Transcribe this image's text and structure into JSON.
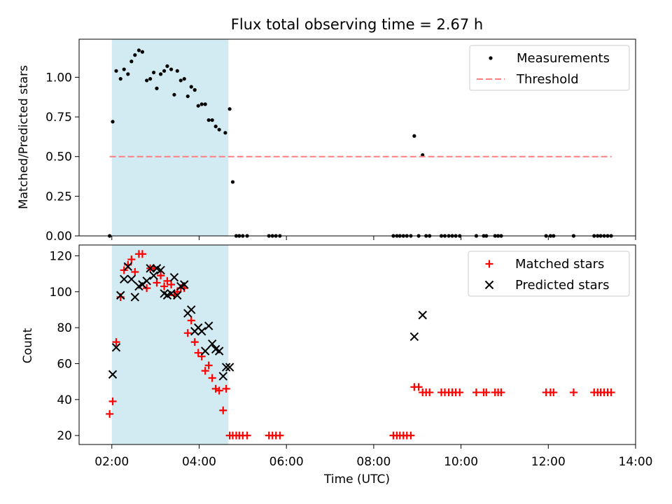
{
  "chart_data": {
    "title": "Flux total observing time = 2.67 h",
    "shared_xlabel": "Time (UTC)",
    "x_unit": "hours UTC",
    "xlim": [
      1.25,
      14.0
    ],
    "x_ticks": [
      {
        "value": 2,
        "label": "02:00"
      },
      {
        "value": 4,
        "label": "04:00"
      },
      {
        "value": 6,
        "label": "06:00"
      },
      {
        "value": 8,
        "label": "08:00"
      },
      {
        "value": 10,
        "label": "10:00"
      },
      {
        "value": 12,
        "label": "12:00"
      },
      {
        "value": 14,
        "label": "14:00"
      }
    ],
    "observing_window": {
      "start": 2.0,
      "end": 4.67,
      "color": "#add8e6"
    },
    "charts": [
      {
        "type": "scatter",
        "ylabel": "Matched/Predicted stars",
        "ylim": [
          0,
          1.24
        ],
        "y_ticks": [
          {
            "value": 0.0,
            "label": "0.00"
          },
          {
            "value": 0.25,
            "label": "0.25"
          },
          {
            "value": 0.5,
            "label": "0.50"
          },
          {
            "value": 0.75,
            "label": "0.75"
          },
          {
            "value": 1.0,
            "label": "1.00"
          }
        ],
        "legend_position": "top-right",
        "series": [
          {
            "name": "Measurements",
            "marker": "dot",
            "color": "#000000",
            "points": [
              [
                1.95,
                0.0
              ],
              [
                2.02,
                0.72
              ],
              [
                2.1,
                1.04
              ],
              [
                2.2,
                0.99
              ],
              [
                2.28,
                1.05
              ],
              [
                2.37,
                1.02
              ],
              [
                2.45,
                1.1
              ],
              [
                2.53,
                1.14
              ],
              [
                2.62,
                1.17
              ],
              [
                2.7,
                1.16
              ],
              [
                2.8,
                0.98
              ],
              [
                2.88,
                0.99
              ],
              [
                2.96,
                1.03
              ],
              [
                3.03,
                0.93
              ],
              [
                3.12,
                1.02
              ],
              [
                3.2,
                1.04
              ],
              [
                3.27,
                1.07
              ],
              [
                3.36,
                1.05
              ],
              [
                3.43,
                0.89
              ],
              [
                3.5,
                1.04
              ],
              [
                3.58,
                0.98
              ],
              [
                3.66,
                0.99
              ],
              [
                3.74,
                0.88
              ],
              [
                3.82,
                0.94
              ],
              [
                3.9,
                0.92
              ],
              [
                3.98,
                0.82
              ],
              [
                4.06,
                0.83
              ],
              [
                4.14,
                0.83
              ],
              [
                4.22,
                0.73
              ],
              [
                4.3,
                0.73
              ],
              [
                4.38,
                0.69
              ],
              [
                4.46,
                0.67
              ],
              [
                4.6,
                0.65
              ],
              [
                4.7,
                0.8
              ],
              [
                4.77,
                0.34
              ],
              [
                4.85,
                0.0
              ],
              [
                4.92,
                0.0
              ],
              [
                5.0,
                0.0
              ],
              [
                5.1,
                0.0
              ],
              [
                5.6,
                0.0
              ],
              [
                5.68,
                0.0
              ],
              [
                5.76,
                0.0
              ],
              [
                5.85,
                0.0
              ],
              [
                8.45,
                0.0
              ],
              [
                8.53,
                0.0
              ],
              [
                8.6,
                0.0
              ],
              [
                8.68,
                0.0
              ],
              [
                8.76,
                0.0
              ],
              [
                8.85,
                0.0
              ],
              [
                8.93,
                0.63
              ],
              [
                9.03,
                0.0
              ],
              [
                9.12,
                0.51
              ],
              [
                9.2,
                0.0
              ],
              [
                9.28,
                0.0
              ],
              [
                9.55,
                0.0
              ],
              [
                9.63,
                0.0
              ],
              [
                9.72,
                0.0
              ],
              [
                9.8,
                0.0
              ],
              [
                9.88,
                0.0
              ],
              [
                9.97,
                0.0
              ],
              [
                10.35,
                0.0
              ],
              [
                10.52,
                0.0
              ],
              [
                10.58,
                0.0
              ],
              [
                10.78,
                0.0
              ],
              [
                10.85,
                0.0
              ],
              [
                10.92,
                0.0
              ],
              [
                11.95,
                0.0
              ],
              [
                12.05,
                0.0
              ],
              [
                12.12,
                0.0
              ],
              [
                12.58,
                0.0
              ],
              [
                13.05,
                0.0
              ],
              [
                13.13,
                0.0
              ],
              [
                13.2,
                0.0
              ],
              [
                13.28,
                0.0
              ],
              [
                13.36,
                0.0
              ],
              [
                13.44,
                0.0
              ]
            ]
          },
          {
            "name": "Threshold",
            "marker": "dashed-line",
            "color": "#ff7f7f",
            "points": [
              [
                1.95,
                0.5
              ],
              [
                13.45,
                0.5
              ]
            ]
          }
        ]
      },
      {
        "type": "scatter",
        "ylabel": "Count",
        "ylim": [
          15,
          126
        ],
        "y_ticks": [
          {
            "value": 20,
            "label": "20"
          },
          {
            "value": 40,
            "label": "40"
          },
          {
            "value": 60,
            "label": "60"
          },
          {
            "value": 80,
            "label": "80"
          },
          {
            "value": 100,
            "label": "100"
          },
          {
            "value": 120,
            "label": "120"
          }
        ],
        "legend_position": "top-right",
        "series": [
          {
            "name": "Matched stars",
            "marker": "plus",
            "color": "#ff0000",
            "points": [
              [
                1.95,
                32
              ],
              [
                2.02,
                39
              ],
              [
                2.1,
                72
              ],
              [
                2.2,
                97
              ],
              [
                2.28,
                112
              ],
              [
                2.37,
                115
              ],
              [
                2.45,
                118
              ],
              [
                2.53,
                111
              ],
              [
                2.62,
                121
              ],
              [
                2.7,
                121
              ],
              [
                2.8,
                102
              ],
              [
                2.88,
                113
              ],
              [
                2.96,
                113
              ],
              [
                3.03,
                105
              ],
              [
                3.12,
                109
              ],
              [
                3.2,
                103
              ],
              [
                3.27,
                106
              ],
              [
                3.36,
                104
              ],
              [
                3.43,
                98
              ],
              [
                3.5,
                100
              ],
              [
                3.58,
                102
              ],
              [
                3.66,
                102
              ],
              [
                3.74,
                77
              ],
              [
                3.82,
                84
              ],
              [
                3.9,
                72
              ],
              [
                3.98,
                66
              ],
              [
                4.06,
                64
              ],
              [
                4.14,
                56
              ],
              [
                4.22,
                59
              ],
              [
                4.3,
                52
              ],
              [
                4.38,
                46
              ],
              [
                4.46,
                45
              ],
              [
                4.55,
                34
              ],
              [
                4.62,
                46
              ],
              [
                4.7,
                20
              ],
              [
                4.77,
                20
              ],
              [
                4.85,
                20
              ],
              [
                4.92,
                20
              ],
              [
                5.0,
                20
              ],
              [
                5.1,
                20
              ],
              [
                5.6,
                20
              ],
              [
                5.68,
                20
              ],
              [
                5.76,
                20
              ],
              [
                5.85,
                20
              ],
              [
                8.45,
                20
              ],
              [
                8.53,
                20
              ],
              [
                8.6,
                20
              ],
              [
                8.68,
                20
              ],
              [
                8.76,
                20
              ],
              [
                8.85,
                20
              ],
              [
                8.93,
                47
              ],
              [
                9.03,
                47
              ],
              [
                9.12,
                44
              ],
              [
                9.2,
                44
              ],
              [
                9.28,
                44
              ],
              [
                9.55,
                44
              ],
              [
                9.63,
                44
              ],
              [
                9.72,
                44
              ],
              [
                9.8,
                44
              ],
              [
                9.88,
                44
              ],
              [
                9.97,
                44
              ],
              [
                10.35,
                44
              ],
              [
                10.52,
                44
              ],
              [
                10.58,
                44
              ],
              [
                10.78,
                44
              ],
              [
                10.85,
                44
              ],
              [
                10.92,
                44
              ],
              [
                11.95,
                44
              ],
              [
                12.05,
                44
              ],
              [
                12.12,
                44
              ],
              [
                12.58,
                44
              ],
              [
                13.05,
                44
              ],
              [
                13.13,
                44
              ],
              [
                13.2,
                44
              ],
              [
                13.28,
                44
              ],
              [
                13.36,
                44
              ],
              [
                13.44,
                44
              ]
            ]
          },
          {
            "name": "Predicted stars",
            "marker": "x",
            "color": "#000000",
            "points": [
              [
                2.02,
                54
              ],
              [
                2.1,
                69
              ],
              [
                2.2,
                98
              ],
              [
                2.28,
                107
              ],
              [
                2.37,
                114
              ],
              [
                2.45,
                107
              ],
              [
                2.53,
                97
              ],
              [
                2.62,
                103
              ],
              [
                2.7,
                104
              ],
              [
                2.8,
                106
              ],
              [
                2.88,
                113
              ],
              [
                2.96,
                109
              ],
              [
                3.03,
                113
              ],
              [
                3.12,
                112
              ],
              [
                3.2,
                99
              ],
              [
                3.27,
                98
              ],
              [
                3.36,
                99
              ],
              [
                3.43,
                108
              ],
              [
                3.5,
                98
              ],
              [
                3.58,
                103
              ],
              [
                3.66,
                104
              ],
              [
                3.74,
                88
              ],
              [
                3.82,
                90
              ],
              [
                3.9,
                78
              ],
              [
                3.98,
                80
              ],
              [
                4.06,
                78
              ],
              [
                4.14,
                67
              ],
              [
                4.22,
                81
              ],
              [
                4.3,
                71
              ],
              [
                4.38,
                68
              ],
              [
                4.46,
                67
              ],
              [
                4.55,
                53
              ],
              [
                4.62,
                58
              ],
              [
                4.7,
                58
              ],
              [
                8.93,
                75
              ],
              [
                9.12,
                87
              ]
            ]
          }
        ]
      }
    ]
  }
}
